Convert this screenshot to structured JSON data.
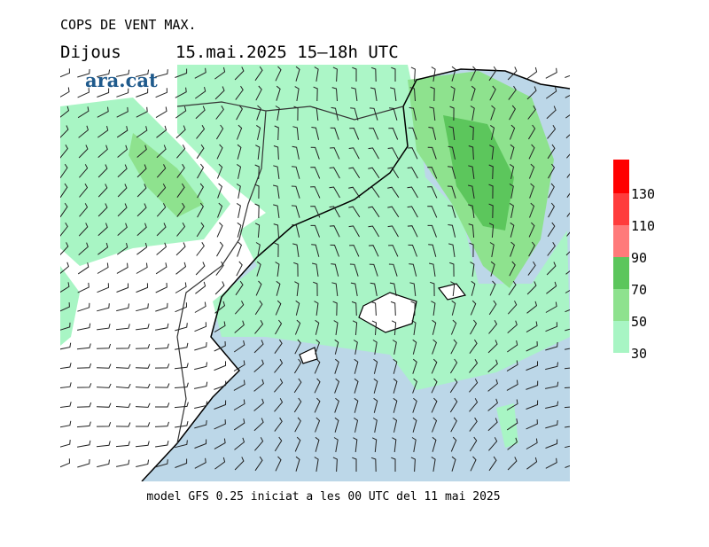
{
  "header": {
    "title": "COPS DE VENT MAX.",
    "day": "Dijous",
    "period": "15.mai.2025 15–18h UTC"
  },
  "logo": "ara.cat",
  "footer": "model GFS 0.25 iniciat a les 00 UTC del 11 mai 2025",
  "legend": {
    "ticks": [
      30,
      50,
      70,
      90,
      110,
      130
    ],
    "colors": [
      "#a8f5c4",
      "#8ee28e",
      "#5cc65c",
      "#ff7a7a",
      "#ff3c3c",
      "#ff0000"
    ]
  }
}
